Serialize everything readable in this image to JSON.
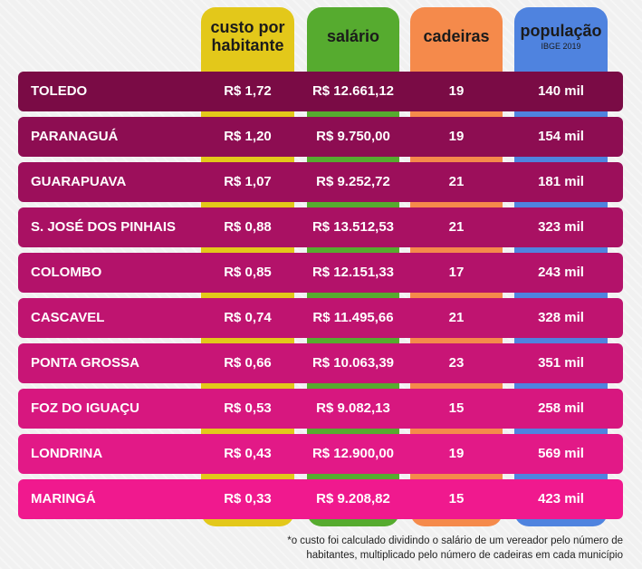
{
  "colors": {
    "custo": "#e3c81a",
    "salario": "#56ab2f",
    "cadeiras": "#f58a4b",
    "populacao": "#4f83df",
    "row_gradient": [
      "#7a0b45",
      "#8d0d52",
      "#9c0f5b",
      "#a91163",
      "#b3126a",
      "#bf1470",
      "#c81576",
      "#d7177f",
      "#e21987",
      "#f0198e"
    ]
  },
  "headers": {
    "custo_line1": "custo por",
    "custo_line2": "habitante",
    "salario": "salário",
    "cadeiras": "cadeiras",
    "populacao": "população",
    "populacao_sub": "IBGE 2019"
  },
  "chart_data": {
    "type": "table",
    "columns": [
      "custo por habitante",
      "salário",
      "cadeiras",
      "população"
    ],
    "rows": [
      {
        "municipio": "TOLEDO",
        "custo": "R$ 1,72",
        "salario": "R$ 12.661,12",
        "cadeiras": "19",
        "populacao": "140 mil"
      },
      {
        "municipio": "PARANAGUÁ",
        "custo": "R$ 1,20",
        "salario": "R$ 9.750,00",
        "cadeiras": "19",
        "populacao": "154 mil"
      },
      {
        "municipio": "GUARAPUAVA",
        "custo": "R$ 1,07",
        "salario": "R$ 9.252,72",
        "cadeiras": "21",
        "populacao": "181 mil"
      },
      {
        "municipio": "S. JOSÉ DOS PINHAIS",
        "custo": "R$ 0,88",
        "salario": "R$ 13.512,53",
        "cadeiras": "21",
        "populacao": "323 mil"
      },
      {
        "municipio": "COLOMBO",
        "custo": "R$ 0,85",
        "salario": "R$ 12.151,33",
        "cadeiras": "17",
        "populacao": "243 mil"
      },
      {
        "municipio": "CASCAVEL",
        "custo": "R$ 0,74",
        "salario": "R$ 11.495,66",
        "cadeiras": "21",
        "populacao": "328 mil"
      },
      {
        "municipio": "PONTA GROSSA",
        "custo": "R$ 0,66",
        "salario": "R$ 10.063,39",
        "cadeiras": "23",
        "populacao": "351 mil"
      },
      {
        "municipio": "FOZ DO IGUAÇU",
        "custo": "R$ 0,53",
        "salario": "R$ 9.082,13",
        "cadeiras": "15",
        "populacao": "258 mil"
      },
      {
        "municipio": "LONDRINA",
        "custo": "R$ 0,43",
        "salario": "R$ 12.900,00",
        "cadeiras": "19",
        "populacao": "569 mil"
      },
      {
        "municipio": "MARINGÁ",
        "custo": "R$ 0,33",
        "salario": "R$ 9.208,82",
        "cadeiras": "15",
        "populacao": "423 mil"
      }
    ]
  },
  "footnote": {
    "line1": "*o custo foi calculado dividindo o salário de um vereador pelo número de",
    "line2": "habitantes, multiplicado pelo número de cadeiras em cada município"
  }
}
